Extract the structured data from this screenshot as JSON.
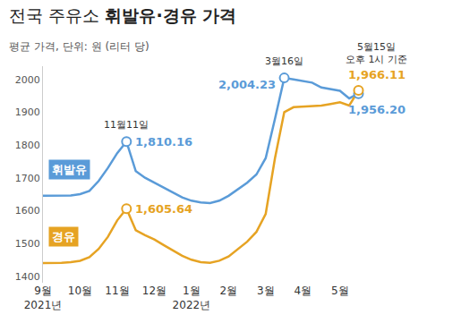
{
  "chart_data": {
    "type": "line",
    "title": "전국 주유소 휘발유·경유 가격",
    "subtitle": "평균 가격, 단위: 원 (리터 당)",
    "categories": [
      "9월\n2021년",
      null,
      null,
      null,
      "10월",
      null,
      null,
      null,
      "11월",
      null,
      null,
      null,
      "12월",
      null,
      null,
      null,
      "1월\n2022년",
      null,
      null,
      null,
      "2월",
      null,
      null,
      null,
      "3월",
      null,
      null,
      null,
      "4월",
      null,
      null,
      null,
      "5월",
      null,
      null
    ],
    "series": [
      {
        "name": "휘발유",
        "color": "#5a9bd8",
        "values": [
          1645,
          1645,
          1645,
          1646,
          1650,
          1660,
          1690,
          1730,
          1775,
          1810.16,
          1720,
          1700,
          1685,
          1670,
          1655,
          1640,
          1630,
          1625,
          1623,
          1630,
          1645,
          1665,
          1685,
          1710,
          1760,
          1880,
          2004.23,
          2000,
          1995,
          1990,
          1975,
          1970,
          1965,
          1942,
          1956.2
        ],
        "value_labels": [
          null,
          null,
          null,
          null,
          null,
          null,
          null,
          null,
          null,
          "1,810.16",
          null,
          null,
          null,
          null,
          null,
          null,
          null,
          null,
          null,
          null,
          null,
          null,
          null,
          null,
          null,
          null,
          "2,004.23",
          null,
          null,
          null,
          null,
          null,
          null,
          null,
          "1,956.20"
        ]
      },
      {
        "name": "경유",
        "color": "#e6a323",
        "values": [
          1440,
          1440,
          1441,
          1443,
          1447,
          1458,
          1483,
          1520,
          1570,
          1605.64,
          1540,
          1525,
          1512,
          1495,
          1478,
          1462,
          1450,
          1443,
          1441,
          1447,
          1460,
          1482,
          1505,
          1535,
          1590,
          1760,
          1900,
          1915,
          1917,
          1918,
          1920,
          1925,
          1930,
          1920,
          1966.11
        ],
        "value_labels": [
          null,
          null,
          null,
          null,
          null,
          null,
          null,
          null,
          null,
          "1,605.64",
          null,
          null,
          null,
          null,
          null,
          null,
          null,
          null,
          null,
          null,
          null,
          null,
          null,
          null,
          null,
          null,
          null,
          null,
          null,
          null,
          null,
          null,
          null,
          null,
          "1,966.11"
        ]
      }
    ],
    "annotations": [
      {
        "text": "11월11일",
        "x": 9
      },
      {
        "text": "3월16일",
        "x": 26
      },
      {
        "text": "5월15일\n오후 1시 기준",
        "x": 34
      }
    ],
    "ylim": [
      1380,
      2040
    ],
    "yticks": [
      1400,
      1500,
      1600,
      1700,
      1800,
      1900,
      2000
    ],
    "grid": false,
    "data_labels": true
  }
}
